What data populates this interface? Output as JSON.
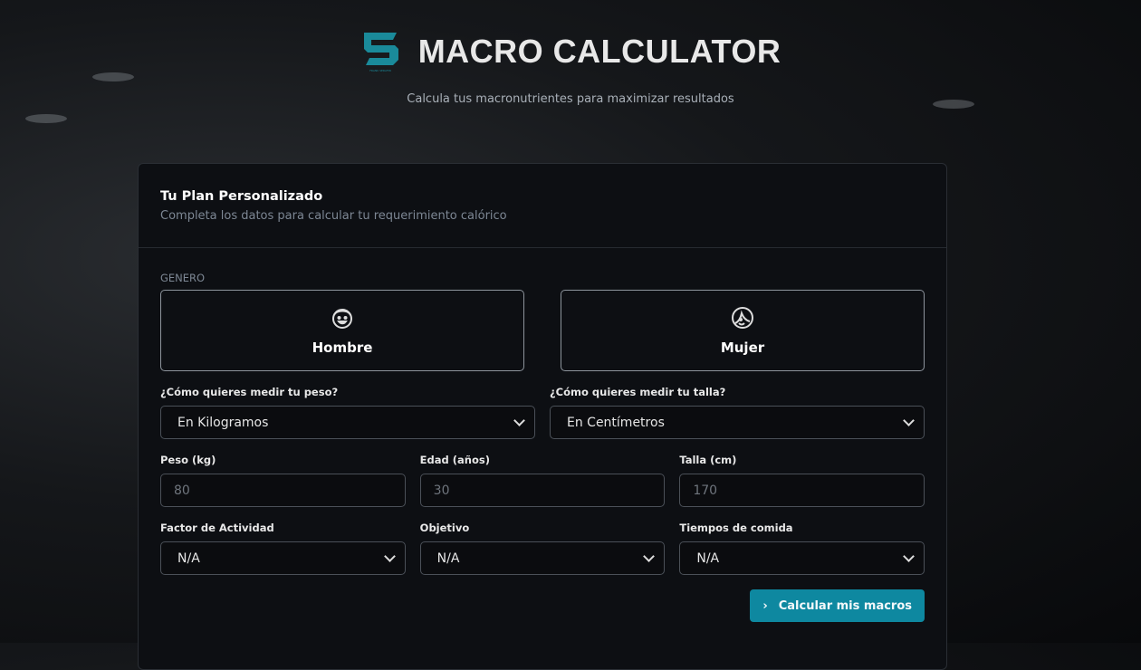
{
  "header": {
    "title": "MACRO CALCULATOR",
    "subtitle": "Calcula tus macronutrientes para maximizar resultados",
    "logo_text": "FRANK SERAFIN",
    "brand_color": "#0e88a0"
  },
  "card": {
    "title": "Tu Plan Personalizado",
    "description": "Completa los datos para calcular tu requerimiento calórico"
  },
  "gender": {
    "label": "GENERO",
    "options": [
      {
        "label": "Hombre",
        "icon": "man-face-icon"
      },
      {
        "label": "Mujer",
        "icon": "woman-face-icon"
      }
    ]
  },
  "weight_unit": {
    "label": "¿Cómo quieres medir tu peso?",
    "value": "En Kilogramos"
  },
  "height_unit": {
    "label": "¿Cómo quieres medir tu talla?",
    "value": "En Centímetros"
  },
  "weight": {
    "label": "Peso (kg)",
    "placeholder": "80"
  },
  "age": {
    "label": "Edad (años)",
    "placeholder": "30"
  },
  "height": {
    "label": "Talla (cm)",
    "placeholder": "170"
  },
  "activity": {
    "label": "Factor de Actividad",
    "value": "N/A"
  },
  "goal": {
    "label": "Objetivo",
    "value": "N/A"
  },
  "meals": {
    "label": "Tiempos de comida",
    "value": "N/A"
  },
  "submit": {
    "label": "Calcular mis macros"
  }
}
